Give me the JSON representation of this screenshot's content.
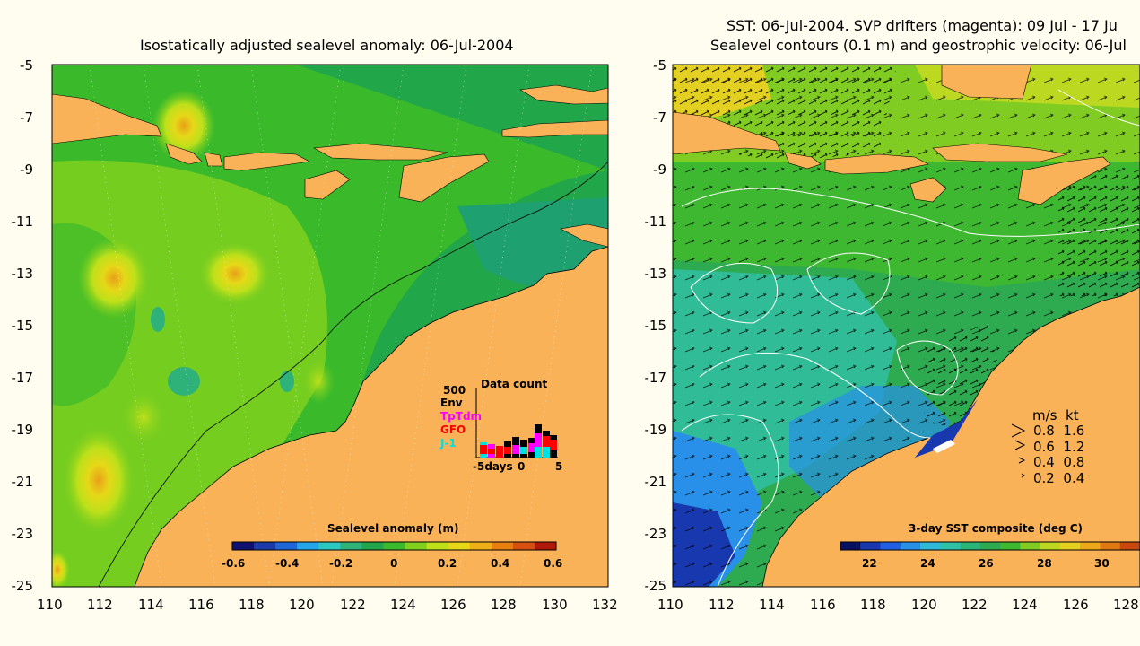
{
  "left": {
    "title": "Isostatically adjusted sealevel anomaly: 06-Jul-2004",
    "colorbar_label": "Sealevel anomaly (m)",
    "colorbar_ticks": [
      "-0.6",
      "-0.4",
      "-0.2",
      "0",
      "0.2",
      "0.4",
      "0.6"
    ],
    "colorbar_colors": [
      "#101070",
      "#1a3aa8",
      "#1f66d8",
      "#25a6e8",
      "#2cc8c0",
      "#2fb27a",
      "#22a64a",
      "#3aba2a",
      "#80d01e",
      "#bde01a",
      "#e6d818",
      "#f0b018",
      "#e88010",
      "#d85010",
      "#b01808"
    ],
    "data_count": {
      "title": "Data count",
      "y_label": "500",
      "legend": [
        {
          "name": "Env",
          "color": "#000000"
        },
        {
          "name": "TpTdm",
          "color": "#ff00ff"
        },
        {
          "name": "GFO",
          "color": "#ff0000"
        },
        {
          "name": "J-1",
          "color": "#00e0e0"
        }
      ],
      "x_labels": [
        "-5days",
        "0",
        "5"
      ]
    }
  },
  "right": {
    "title_line1": "SST: 06-Jul-2004. SVP drifters (magenta): 09 Jul - 17 Ju",
    "title_line2": "Sealevel contours (0.1 m) and geostrophic velocity: 06-Jul",
    "colorbar_label": "3-day SST composite (deg C)",
    "colorbar_ticks": [
      "22",
      "24",
      "26",
      "28",
      "30"
    ],
    "colorbar_colors": [
      "#0a1060",
      "#1838b0",
      "#2060e0",
      "#2890e8",
      "#30b8d8",
      "#30c0a8",
      "#2ab478",
      "#2eaa50",
      "#3eb830",
      "#80cc22",
      "#bcd820",
      "#e4d020",
      "#eca818",
      "#e07814",
      "#c84810"
    ],
    "velocity_legend": {
      "header_ms": "m/s",
      "header_kt": "kt",
      "rows": [
        {
          "ms": "0.8",
          "kt": "1.6"
        },
        {
          "ms": "0.6",
          "kt": "1.2"
        },
        {
          "ms": "0.4",
          "kt": "0.8"
        },
        {
          "ms": "0.2",
          "kt": "0.4"
        }
      ]
    }
  },
  "lat_ticks": [
    "-5",
    "-7",
    "-9",
    "-11",
    "-13",
    "-15",
    "-17",
    "-19",
    "-21",
    "-23",
    "-25"
  ],
  "left_lon_ticks": [
    "110",
    "112",
    "114",
    "116",
    "118",
    "120",
    "122",
    "124",
    "126",
    "128",
    "130",
    "132"
  ],
  "right_lon_ticks": [
    "110",
    "112",
    "114",
    "116",
    "118",
    "120",
    "122",
    "124",
    "126",
    "128"
  ],
  "colors": {
    "land": "#f9b258",
    "ocean_green": "#22a64a",
    "ocean_mid": "#3aba2a",
    "ocean_high": "#80d01e",
    "background": "#fffdf0"
  }
}
